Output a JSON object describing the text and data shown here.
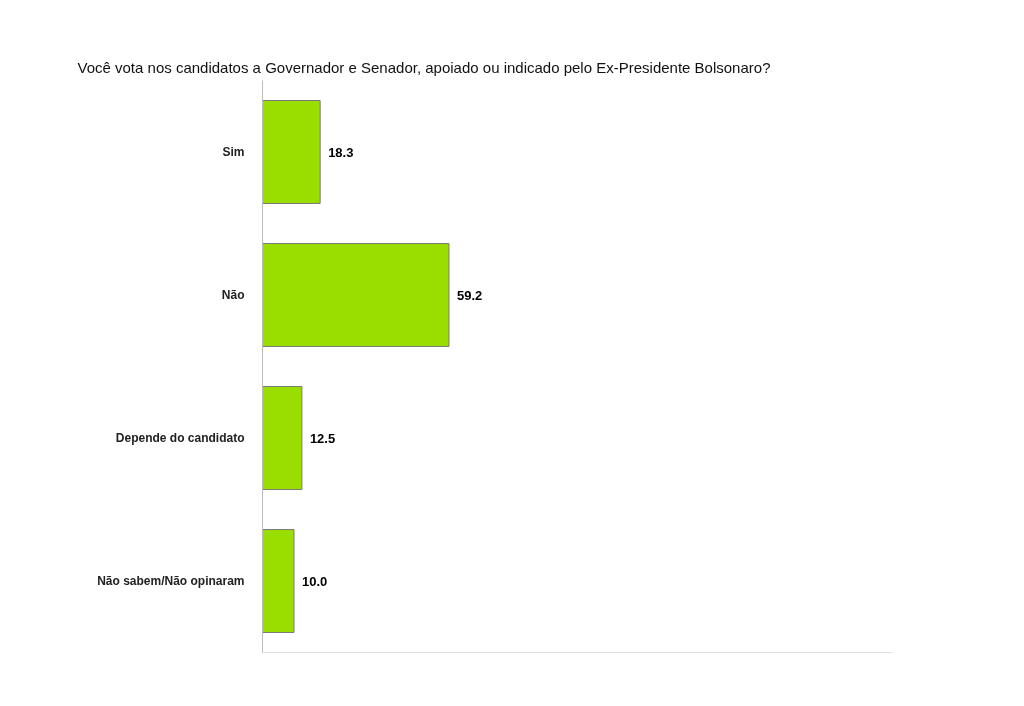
{
  "chart_data": {
    "type": "bar",
    "orientation": "horizontal",
    "title": "Você vota nos candidatos a Governador e Senador, apoiado ou indicado pelo Ex-Presidente Bolsonaro?",
    "categories": [
      "Sim",
      "Não",
      "Depende do candidato",
      "Não sabem/Não opinaram"
    ],
    "values": [
      18.3,
      59.2,
      12.5,
      10.0
    ],
    "value_labels": [
      "18.3",
      "59.2",
      "12.5",
      "10.0"
    ],
    "color": "#9ade00",
    "xlim": [
      0,
      200
    ],
    "tick_labels": "y",
    "grid": false
  }
}
